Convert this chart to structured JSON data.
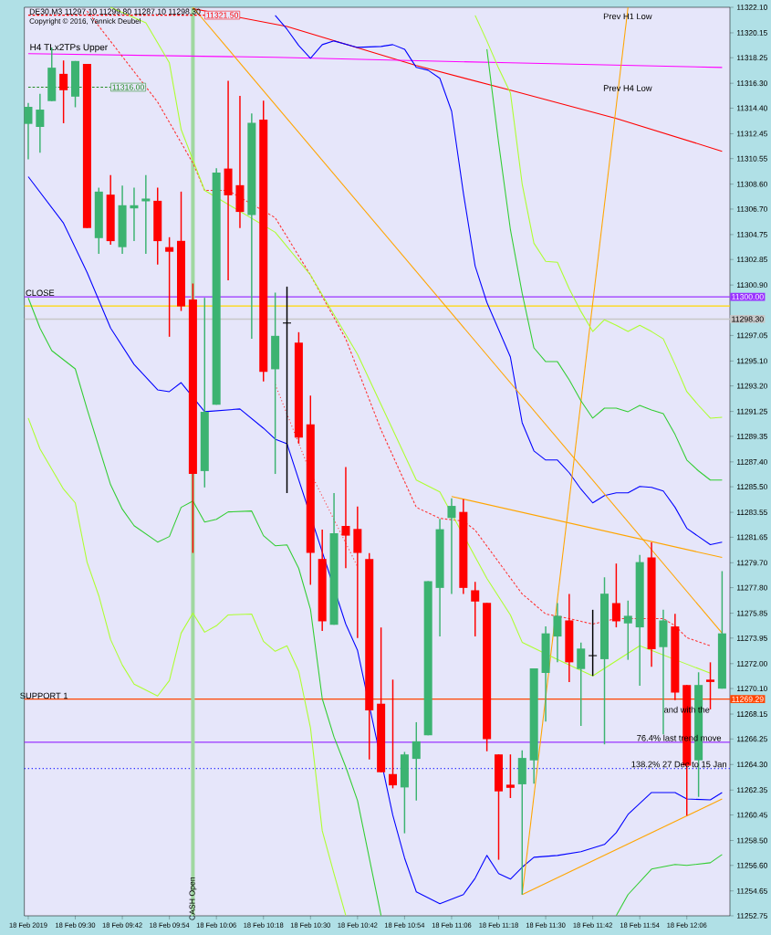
{
  "chart_data": {
    "type": "candlestick",
    "title": "DE30,M3  11297.10 11299.80 11287.10 11298.30",
    "subtitle": "Copyright © 2016, Yannick Deubel",
    "x": [
      "2019-02-18T09:18",
      "2019-02-18T09:21",
      "2019-02-18T09:24",
      "2019-02-18T09:27",
      "2019-02-18T09:30",
      "2019-02-18T09:33",
      "2019-02-18T09:36",
      "2019-02-18T09:39",
      "2019-02-18T09:42",
      "2019-02-18T09:45",
      "2019-02-18T09:48",
      "2019-02-18T09:51",
      "2019-02-18T09:54",
      "2019-02-18T09:57",
      "2019-02-18T10:00",
      "2019-02-18T10:03",
      "2019-02-18T10:06",
      "2019-02-18T10:09",
      "2019-02-18T10:12",
      "2019-02-18T10:15",
      "2019-02-18T10:18",
      "2019-02-18T10:21",
      "2019-02-18T10:24",
      "2019-02-18T10:27",
      "2019-02-18T10:30",
      "2019-02-18T10:33",
      "2019-02-18T10:36",
      "2019-02-18T10:39",
      "2019-02-18T10:42",
      "2019-02-18T10:45",
      "2019-02-18T10:48",
      "2019-02-18T10:51",
      "2019-02-18T10:54",
      "2019-02-18T10:57",
      "2019-02-18T11:00",
      "2019-02-18T11:03",
      "2019-02-18T11:06",
      "2019-02-18T11:09",
      "2019-02-18T11:12",
      "2019-02-18T11:15",
      "2019-02-18T11:18",
      "2019-02-18T11:21",
      "2019-02-18T11:24",
      "2019-02-18T11:27",
      "2019-02-18T11:30",
      "2019-02-18T11:33",
      "2019-02-18T11:36",
      "2019-02-18T11:39",
      "2019-02-18T11:42",
      "2019-02-18T11:45",
      "2019-02-18T11:48",
      "2019-02-18T11:51",
      "2019-02-18T11:54",
      "2019-02-18T11:57",
      "2019-02-18T12:00",
      "2019-02-18T12:03",
      "2019-02-18T12:06",
      "2019-02-18T12:09",
      "2019-02-18T12:12",
      "2019-02-18T12:15"
    ],
    "xlim": [
      "2019-02-18T09:17",
      "2019-02-18T12:17"
    ],
    "ylim": [
      11252.75,
      11322.1
    ],
    "xticks": [
      {
        "value": "2019-02-18T09:18",
        "label": "18 Feb 2019"
      },
      {
        "value": "2019-02-18T09:30",
        "label": "18 Feb 09:30"
      },
      {
        "value": "2019-02-18T09:42",
        "label": "18 Feb 09:42"
      },
      {
        "value": "2019-02-18T09:54",
        "label": "18 Feb 09:54"
      },
      {
        "value": "2019-02-18T10:06",
        "label": "18 Feb 10:06"
      },
      {
        "value": "2019-02-18T10:18",
        "label": "18 Feb 10:18"
      },
      {
        "value": "2019-02-18T10:30",
        "label": "18 Feb 10:30"
      },
      {
        "value": "2019-02-18T10:42",
        "label": "18 Feb 10:42"
      },
      {
        "value": "2019-02-18T10:54",
        "label": "18 Feb 10:54"
      },
      {
        "value": "2019-02-18T11:06",
        "label": "18 Feb 11:06"
      },
      {
        "value": "2019-02-18T11:18",
        "label": "18 Feb 11:18"
      },
      {
        "value": "2019-02-18T11:30",
        "label": "18 Feb 11:30"
      },
      {
        "value": "2019-02-18T11:42",
        "label": "18 Feb 11:42"
      },
      {
        "value": "2019-02-18T11:54",
        "label": "18 Feb 11:54"
      },
      {
        "value": "2019-02-18T12:06",
        "label": "18 Feb 12:06"
      }
    ],
    "yticks": [
      {
        "value": 11322.1,
        "label": "11322.10"
      },
      {
        "value": 11320.15,
        "label": "11320.15"
      },
      {
        "value": 11318.25,
        "label": "11318.25"
      },
      {
        "value": 11316.3,
        "label": "11316.30"
      },
      {
        "value": 11314.4,
        "label": "11314.40"
      },
      {
        "value": 11312.45,
        "label": "11312.45"
      },
      {
        "value": 11310.55,
        "label": "11310.55"
      },
      {
        "value": 11308.6,
        "label": "11308.60"
      },
      {
        "value": 11306.7,
        "label": "11306.70"
      },
      {
        "value": 11304.75,
        "label": "11304.75"
      },
      {
        "value": 11302.85,
        "label": "11302.85"
      },
      {
        "value": 11300.9,
        "label": "11300.90"
      },
      {
        "value": 11297.05,
        "label": "11297.05"
      },
      {
        "value": 11295.1,
        "label": "11295.10"
      },
      {
        "value": 11293.2,
        "label": "11293.20"
      },
      {
        "value": 11291.25,
        "label": "11291.25"
      },
      {
        "value": 11289.35,
        "label": "11289.35"
      },
      {
        "value": 11287.4,
        "label": "11287.40"
      },
      {
        "value": 11285.5,
        "label": "11285.50"
      },
      {
        "value": 11283.55,
        "label": "11283.55"
      },
      {
        "value": 11281.65,
        "label": "11281.65"
      },
      {
        "value": 11279.7,
        "label": "11279.70"
      },
      {
        "value": 11277.8,
        "label": "11277.80"
      },
      {
        "value": 11275.85,
        "label": "11275.85"
      },
      {
        "value": 11273.95,
        "label": "11273.95"
      },
      {
        "value": 11272.0,
        "label": "11272.00"
      },
      {
        "value": 11270.1,
        "label": "11270.10"
      },
      {
        "value": 11268.15,
        "label": "11268.15"
      },
      {
        "value": 11266.25,
        "label": "11266.25"
      },
      {
        "value": 11264.3,
        "label": "11264.30"
      },
      {
        "value": 11262.35,
        "label": "11262.35"
      },
      {
        "value": 11260.45,
        "label": "11260.45"
      },
      {
        "value": 11258.5,
        "label": "11258.50"
      },
      {
        "value": 11256.6,
        "label": "11256.60"
      },
      {
        "value": 11254.65,
        "label": "11254.65"
      },
      {
        "value": 11252.75,
        "label": "11252.75"
      }
    ],
    "series": [
      {
        "ohlc": [
          [
            11313.2,
            11314.8,
            11310.5,
            11314.5
          ],
          [
            11312.97,
            11315.49,
            11311.0,
            11314.29
          ],
          [
            11314.94,
            11319.04,
            11314.94,
            11317.49
          ],
          [
            11317.02,
            11318.04,
            11313.25,
            11315.77
          ],
          [
            11315.28,
            11318.0,
            11314.47,
            11318.0
          ],
          [
            11317.77,
            11317.77,
            11305.25,
            11305.25
          ],
          [
            11304.48,
            11308.33,
            11303.28,
            11308.03
          ],
          [
            11307.8,
            11309.3,
            11303.97,
            11304.25
          ],
          [
            11303.79,
            11308.49,
            11303.28,
            11306.99
          ],
          [
            11306.75,
            11308.33,
            11304.25,
            11306.99
          ],
          [
            11307.29,
            11309.3,
            11303.28,
            11307.5
          ],
          [
            11307.33,
            11308.33,
            11302.47,
            11304.25
          ],
          [
            11303.79,
            11304.55,
            11296.95,
            11303.44
          ],
          [
            11304.27,
            11308.03,
            11298.92,
            11299.27
          ],
          [
            11299.8,
            11301.01,
            11280.45,
            11286.49
          ],
          [
            11286.7,
            11299.92,
            11285.45,
            11291.22
          ],
          [
            11291.76,
            11309.81,
            11291.76,
            11309.49
          ],
          [
            11309.79,
            11316.49,
            11301.26,
            11307.75
          ],
          [
            11308.52,
            11315.33,
            11305.25,
            11306.48
          ],
          [
            11306.24,
            11313.99,
            11296.79,
            11313.29
          ],
          [
            11313.52,
            11314.98,
            11293.54,
            11294.28
          ],
          [
            11294.47,
            11300.32,
            11286.48,
            11297.02
          ],
          [
            11298.0,
            11300.78,
            11285.02,
            11298.0
          ],
          [
            11296.51,
            11297.3,
            11288.79,
            11289.26
          ],
          [
            11290.26,
            11292.46,
            11278.02,
            11280.45
          ],
          [
            11279.99,
            11282.23,
            11274.49,
            11275.23
          ],
          [
            11274.96,
            11285.02,
            11274.96,
            11281.96
          ],
          [
            11282.51,
            11287.01,
            11279.29,
            11281.77
          ],
          [
            11282.28,
            11284.0,
            11273.95,
            11280.45
          ],
          [
            11279.98,
            11280.44,
            11264.68,
            11268.43
          ],
          [
            11268.94,
            11274.76,
            11263.71,
            11263.71
          ],
          [
            11263.57,
            11270.78,
            11262.48,
            11262.71
          ],
          [
            11262.55,
            11265.26,
            11259.05,
            11265.07
          ],
          [
            11264.73,
            11267.53,
            11261.55,
            11266.07
          ],
          [
            11266.53,
            11278.29,
            11266.53,
            11278.29
          ],
          [
            11277.78,
            11283.05,
            11274.08,
            11282.26
          ],
          [
            11283.12,
            11284.62,
            11277.32,
            11284.04
          ],
          [
            11283.58,
            11284.55,
            11277.32,
            11277.78
          ],
          [
            11277.6,
            11278.25,
            11274.08,
            11276.74
          ],
          [
            11276.63,
            11276.63,
            11265.31,
            11266.23
          ],
          [
            11265.07,
            11265.07,
            11257.03,
            11262.25
          ],
          [
            11262.76,
            11265.07,
            11261.74,
            11262.52
          ],
          [
            11262.79,
            11265.38,
            11254.37,
            11264.8
          ],
          [
            11264.62,
            11271.64,
            11262.83,
            11271.64
          ],
          [
            11271.29,
            11274.84,
            11267.58,
            11274.31
          ],
          [
            11274.07,
            11276.62,
            11272.1,
            11275.65
          ],
          [
            11275.3,
            11277.32,
            11270.6,
            11272.1
          ],
          [
            11271.59,
            11273.61,
            11267.24,
            11273.15
          ],
          [
            11272.61,
            11276.11,
            11271.06,
            11272.61
          ],
          [
            11272.34,
            11278.59,
            11265.84,
            11277.34
          ],
          [
            11276.62,
            11279.64,
            11274.77,
            11275.23
          ],
          [
            11275.07,
            11276.81,
            11272.29,
            11275.65
          ],
          [
            11274.77,
            11280.29,
            11270.32,
            11279.75
          ],
          [
            11280.1,
            11281.26,
            11271.76,
            11273.1
          ],
          [
            11273.26,
            11276.11,
            11266.61,
            11275.3
          ],
          [
            11274.84,
            11275.81,
            11269.21,
            11269.79
          ],
          [
            11270.37,
            11270.37,
            11260.4,
            11264.22
          ],
          [
            11264.62,
            11271.34,
            11261.83,
            11270.37
          ],
          [
            11270.78,
            11272.1,
            11268.51,
            11270.6
          ],
          [
            11270.09,
            11279.06,
            11270.09,
            11274.31
          ]
        ],
        "colors": [
          "#3cb371",
          "#3cb371",
          "#3cb371",
          "#ff0000",
          "#3cb371",
          "#ff0000",
          "#3cb371",
          "#ff0000",
          "#3cb371",
          "#3cb371",
          "#3cb371",
          "#ff0000",
          "#ff0000",
          "#ff0000",
          "#ff0000",
          "#3cb371",
          "#3cb371",
          "#ff0000",
          "#ff0000",
          "#3cb371",
          "#ff0000",
          "#3cb371",
          "#000000",
          "#ff0000",
          "#ff0000",
          "#ff0000",
          "#3cb371",
          "#ff0000",
          "#ff0000",
          "#ff0000",
          "#ff0000",
          "#ff0000",
          "#3cb371",
          "#3cb371",
          "#3cb371",
          "#3cb371",
          "#3cb371",
          "#ff0000",
          "#ff0000",
          "#ff0000",
          "#ff0000",
          "#ff0000",
          "#3cb371",
          "#3cb371",
          "#3cb371",
          "#3cb371",
          "#ff0000",
          "#3cb371",
          "#000000",
          "#3cb371",
          "#ff0000",
          "#3cb371",
          "#3cb371",
          "#ff0000",
          "#3cb371",
          "#ff0000",
          "#ff0000",
          "#3cb371",
          "#ff0000",
          "#3cb371"
        ]
      },
      {
        "type": "line",
        "color": "#ff0000",
        "x": [
          "2019-02-18T10:00",
          "2019-02-18T10:24",
          "2019-02-18T10:57",
          "2019-02-18T11:21",
          "2019-02-18T11:48",
          "2019-02-18T12:15"
        ],
        "values": [
          11322.0,
          11320.64,
          11317.65,
          11315.77,
          11313.62,
          11311.11
        ]
      },
      {
        "type": "line",
        "name": "H4 TLx2TPs Upper",
        "color": "#ff00ff",
        "x": [
          "2019-02-18T09:18",
          "2019-02-18T10:21",
          "2019-02-18T11:21",
          "2019-02-18T12:15"
        ],
        "values": [
          11318.56,
          11318.28,
          11317.86,
          11317.51
        ]
      },
      {
        "type": "line",
        "color": "#0000ff",
        "x": [
          "2019-02-18T09:18",
          "2019-02-18T09:27",
          "2019-02-18T09:33",
          "2019-02-18T09:39",
          "2019-02-18T09:45",
          "2019-02-18T09:51",
          "2019-02-18T09:54",
          "2019-02-18T09:57",
          "2019-02-18T10:00",
          "2019-02-18T10:03",
          "2019-02-18T10:12",
          "2019-02-18T10:18",
          "2019-02-18T10:21",
          "2019-02-18T10:24",
          "2019-02-18T10:30",
          "2019-02-18T10:33",
          "2019-02-18T10:39",
          "2019-02-18T10:42",
          "2019-02-18T10:45",
          "2019-02-18T10:48",
          "2019-02-18T10:51",
          "2019-02-18T10:54",
          "2019-02-18T10:57",
          "2019-02-18T11:03",
          "2019-02-18T11:09",
          "2019-02-18T11:12",
          "2019-02-18T11:15",
          "2019-02-18T11:18",
          "2019-02-18T11:21",
          "2019-02-18T11:24",
          "2019-02-18T11:27",
          "2019-02-18T11:33",
          "2019-02-18T11:39",
          "2019-02-18T11:45",
          "2019-02-18T11:48",
          "2019-02-18T11:51",
          "2019-02-18T11:57",
          "2019-02-18T12:03",
          "2019-02-18T12:06",
          "2019-02-18T12:12",
          "2019-02-18T12:15"
        ],
        "values": [
          11309.17,
          11305.62,
          11301.87,
          11297.62,
          11294.84,
          11292.9,
          11292.76,
          11293.45,
          null,
          11291.23,
          11291.44,
          11289.97,
          11289.14,
          11288.79,
          null,
          null,
          11275.02,
          11273.01,
          null,
          null,
          11260.42,
          11257.16,
          11254.58,
          11253.67,
          11254.37,
          11255.62,
          11257.36,
          11255.97,
          11255.55,
          11256.46,
          11257.22,
          11257.36,
          11257.64,
          11258.2,
          11259.1,
          11260.49,
          11262.16,
          11262.16,
          11261.67,
          11261.6,
          11262.16
        ]
      },
      {
        "type": "line",
        "color": "#0000ff",
        "x": [
          "2019-02-18T10:21",
          "2019-02-18T10:24",
          "2019-02-18T10:27",
          "2019-02-18T10:30",
          "2019-02-18T10:33",
          "2019-02-18T10:36",
          "2019-02-18T10:42",
          "2019-02-18T10:48",
          "2019-02-18T10:51",
          "2019-02-18T10:54",
          "2019-02-18T10:57",
          "2019-02-18T11:00",
          "2019-02-18T11:03",
          "2019-02-18T11:06",
          "2019-02-18T11:09",
          "2019-02-18T11:12",
          "2019-02-18T11:15",
          "2019-02-18T11:18",
          "2019-02-18T11:21",
          "2019-02-18T11:24",
          "2019-02-18T11:27",
          "2019-02-18T11:30",
          "2019-02-18T11:33",
          "2019-02-18T11:36",
          "2019-02-18T11:39",
          "2019-02-18T11:42",
          "2019-02-18T11:45",
          "2019-02-18T11:48",
          "2019-02-18T11:51",
          "2019-02-18T11:54",
          "2019-02-18T11:57",
          "2019-02-18T12:00",
          "2019-02-18T12:03",
          "2019-02-18T12:06",
          "2019-02-18T12:09",
          "2019-02-18T12:12",
          "2019-02-18T12:15"
        ],
        "values": [
          11321.48,
          11320.43,
          11319.18,
          11318.21,
          11319.25,
          11319.53,
          11319.04,
          11319.11,
          11319.25,
          11318.9,
          11317.51,
          11317.3,
          11316.68,
          11314.17,
          11307.92,
          11302.35,
          11299.57,
          11297.49,
          11295.4,
          11290.39,
          11288.24,
          11287.54,
          11287.54,
          11286.57,
          11285.32,
          11284.27,
          11284.83,
          11285.04,
          11285.04,
          11285.53,
          11285.46,
          11285.18,
          11283.93,
          11282.33,
          11281.7,
          11281.08,
          11281.28
        ]
      },
      {
        "type": "line",
        "color": "#ffa500",
        "x": [
          "2019-02-18T10:00",
          "2019-02-18T12:15"
        ],
        "values": [
          11322.1,
          11274.33
        ]
      },
      {
        "type": "line",
        "color": "#ffa500",
        "x": [
          "2019-02-18T11:06",
          "2019-02-18T12:15"
        ],
        "values": [
          11284.76,
          11280.1
        ]
      },
      {
        "type": "line",
        "color": "#ffa500",
        "x": [
          "2019-02-18T11:24",
          "2019-02-18T12:15"
        ],
        "values": [
          11254.37,
          11261.67
        ]
      },
      {
        "type": "line",
        "color": "#ffa500",
        "x": [
          "2019-02-18T11:24",
          "2019-02-18T11:51"
        ],
        "values": [
          11254.37,
          11322.1
        ]
      },
      {
        "type": "line",
        "color": "#ff3333",
        "line_style": "dashed",
        "x": [
          "2019-02-18T09:33",
          "2019-02-18T09:45",
          "2019-02-18T09:51",
          "2019-02-18T10:00",
          "2019-02-18T10:03",
          "2019-02-18T10:09",
          "2019-02-18T10:15",
          "2019-02-18T10:21",
          "2019-02-18T10:30",
          "2019-02-18T10:39",
          "2019-02-18T10:48",
          "2019-02-18T10:57",
          "2019-02-18T11:03",
          "2019-02-18T11:09",
          "2019-02-18T11:12",
          "2019-02-18T11:24",
          "2019-02-18T11:30",
          "2019-02-18T11:36",
          "2019-02-18T11:42",
          "2019-02-18T11:48",
          "2019-02-18T11:54",
          "2019-02-18T12:00",
          "2019-02-18T12:03",
          "2019-02-18T12:06",
          "2019-02-18T12:12"
        ],
        "values": [
          11321.82,
          null,
          11314.87,
          11310.21,
          11308.12,
          11308.12,
          null,
          11306.04,
          11301.66,
          11296.79,
          11289.84,
          11283.93,
          11283.09,
          11282.88,
          11282.19,
          11277.32,
          11275.79,
          11275.44,
          11275.02,
          11275.44,
          null,
          11275.44,
          11274.89,
          11273.98,
          11273.36
        ]
      },
      {
        "type": "line",
        "color": "#ff3333",
        "line_style": "dotted",
        "x": [
          "2019-02-18T10:21",
          "2019-02-18T10:30",
          "2019-02-18T10:42"
        ],
        "values": [
          11293.31,
          11286.57,
          11279.41
        ]
      },
      {
        "type": "line",
        "color": "#adff2f",
        "x": [
          "2019-02-18T09:39",
          "2019-02-18T09:48",
          "2019-02-18T09:54",
          "2019-02-18T09:57",
          "2019-02-18T10:03",
          "2019-02-18T10:12",
          "2019-02-18T10:15",
          "2019-02-18T10:21",
          "2019-02-18T10:30",
          "2019-02-18T10:42",
          "2019-02-18T10:57",
          "2019-02-18T11:03",
          "2019-02-18T11:09",
          "2019-02-18T11:15",
          "2019-02-18T11:21",
          "2019-02-18T11:24",
          "2019-02-18T11:30",
          "2019-02-18T11:33",
          "2019-02-18T11:42",
          "2019-02-18T11:54",
          "2019-02-18T12:00",
          "2019-02-18T12:06",
          "2019-02-18T12:12"
        ],
        "values": [
          11322.1,
          11320.92,
          11317.86,
          11312.78,
          11308.12,
          null,
          null,
          11304.93,
          11301.66,
          11295.61,
          11286.01,
          11285.11,
          null,
          11278.5,
          11275.72,
          11273.63,
          null,
          11272.31,
          11271.06,
          11273.36,
          null,
          11271.96,
          11271.27
        ]
      },
      {
        "type": "line",
        "color": "#adff2f",
        "x": [
          "2019-02-18T11:12",
          "2019-02-18T11:15",
          "2019-02-18T11:18",
          "2019-02-18T11:21",
          "2019-02-18T11:24",
          "2019-02-18T11:27",
          "2019-02-18T11:30",
          "2019-02-18T11:33",
          "2019-02-18T11:36",
          "2019-02-18T11:39",
          "2019-02-18T11:42",
          "2019-02-18T11:45",
          "2019-02-18T11:48",
          "2019-02-18T11:51",
          "2019-02-18T11:54",
          "2019-02-18T11:57",
          "2019-02-18T12:00",
          "2019-02-18T12:03",
          "2019-02-18T12:06",
          "2019-02-18T12:09",
          "2019-02-18T12:12",
          "2019-02-18T12:15"
        ],
        "values": [
          11321.48,
          11319.53,
          11317.44,
          11315.57,
          11308.61,
          11304.09,
          11302.7,
          11302.63,
          11300.61,
          11298.88,
          11297.35,
          11298.25,
          11297.83,
          11297.35,
          11297.83,
          11297.35,
          11296.79,
          11294.84,
          11292.76,
          11291.71,
          11290.74,
          11290.81
        ]
      },
      {
        "type": "line",
        "color": "#32cd32",
        "x": [
          "2019-02-18T11:15",
          "2019-02-18T11:18",
          "2019-02-18T11:21",
          "2019-02-18T11:24",
          "2019-02-18T11:27",
          "2019-02-18T11:30",
          "2019-02-18T11:33",
          "2019-02-18T11:36",
          "2019-02-18T11:39",
          "2019-02-18T11:42",
          "2019-02-18T11:45",
          "2019-02-18T11:48",
          "2019-02-18T11:51",
          "2019-02-18T11:54",
          "2019-02-18T11:57",
          "2019-02-18T12:00",
          "2019-02-18T12:03",
          "2019-02-18T12:06",
          "2019-02-18T12:09",
          "2019-02-18T12:12",
          "2019-02-18T12:15"
        ],
        "values": [
          11318.9,
          11311.74,
          11305.13,
          11300.27,
          11296.1,
          11295.05,
          11295.05,
          11293.66,
          11292.06,
          11290.74,
          11291.5,
          11291.5,
          11291.23,
          11291.71,
          11291.37,
          11291.09,
          11289.49,
          11287.54,
          11286.71,
          11286.01,
          11286.01
        ]
      },
      {
        "type": "line",
        "color": "#adff2f",
        "x": [
          "2019-02-18T09:18",
          "2019-02-18T09:21",
          "2019-02-18T09:27",
          "2019-02-18T09:30",
          "2019-02-18T09:33",
          "2019-02-18T09:36",
          "2019-02-18T09:39",
          "2019-02-18T09:42",
          "2019-02-18T09:45",
          "2019-02-18T09:51",
          "2019-02-18T09:54",
          "2019-02-18T09:57",
          "2019-02-18T10:00",
          "2019-02-18T10:03",
          "2019-02-18T10:06",
          "2019-02-18T10:09",
          "2019-02-18T10:15",
          "2019-02-18T10:18",
          "2019-02-18T10:21",
          "2019-02-18T10:24",
          "2019-02-18T10:27",
          "2019-02-18T10:30",
          "2019-02-18T10:33",
          "2019-02-18T10:36",
          "2019-02-18T10:39"
        ],
        "values": [
          11290.74,
          11288.38,
          11285.32,
          11284.27,
          11279.75,
          11277.18,
          11273.84,
          11271.89,
          11270.43,
          11269.53,
          11270.71,
          11274.33,
          11275.86,
          11274.4,
          11274.89,
          11275.72,
          11275.79,
          11273.7,
          11272.94,
          11273.36,
          11271.41,
          11267.1,
          11259.24,
          11255.97,
          11252.77
        ]
      },
      {
        "type": "line",
        "color": "#32cd32",
        "x": [
          "2019-02-18T09:18",
          "2019-02-18T09:21",
          "2019-02-18T09:24",
          "2019-02-18T09:30",
          "2019-02-18T09:33",
          "2019-02-18T09:39",
          "2019-02-18T09:42",
          "2019-02-18T09:45",
          "2019-02-18T09:51",
          "2019-02-18T09:54",
          "2019-02-18T09:57",
          "2019-02-18T10:00",
          "2019-02-18T10:03",
          "2019-02-18T10:06",
          "2019-02-18T10:09",
          "2019-02-18T10:15",
          "2019-02-18T10:18",
          "2019-02-18T10:21",
          "2019-02-18T10:24",
          "2019-02-18T10:27",
          "2019-02-18T10:30",
          "2019-02-18T10:33",
          "2019-02-18T10:36",
          "2019-02-18T10:39",
          "2019-02-18T10:42",
          "2019-02-18T10:48"
        ],
        "values": [
          11299.92,
          11297.62,
          11295.89,
          11294.5,
          11291.44,
          11285.66,
          11283.79,
          11282.53,
          11281.28,
          11281.7,
          11283.93,
          11284.41,
          11282.81,
          11283.02,
          11283.58,
          11283.65,
          11281.77,
          11281.0,
          11281.07,
          11279.27,
          11276.14,
          11269.32,
          11266.4,
          11264.11,
          11261.54,
          11252.77
        ]
      },
      {
        "type": "line",
        "color": "#32cd32",
        "x": [
          "2019-02-18T11:48",
          "2019-02-18T11:51",
          "2019-02-18T11:57",
          "2019-02-18T12:03",
          "2019-02-18T12:06",
          "2019-02-18T12:12",
          "2019-02-18T12:15"
        ],
        "values": [
          11252.77,
          11254.37,
          11256.32,
          11256.67,
          11256.6,
          11256.8,
          11257.43
        ]
      },
      {
        "type": "line",
        "name": "11316.00",
        "color": "#228b22",
        "line_style": "dashed",
        "x": [
          "2019-02-18T09:18",
          "2019-02-18T09:39"
        ],
        "values": [
          11316.0,
          11316.0
        ]
      },
      {
        "type": "line",
        "name": "11321.50",
        "color": "#ff0000",
        "line_style": "dashed",
        "x": [
          "2019-02-18T09:18",
          "2019-02-18T10:03"
        ],
        "values": [
          11321.5,
          11321.5
        ]
      }
    ],
    "ref_lines": [
      {
        "axis": "y",
        "value": 11300.0,
        "label": "11300.00",
        "color": "#9933ff"
      },
      {
        "axis": "y",
        "value": 11299.3,
        "color": "#ffd700"
      },
      {
        "axis": "y",
        "value": 11298.3,
        "label": "11298.30",
        "color": "#c8c8c8"
      },
      {
        "axis": "y",
        "value": 11269.29,
        "label": "11269.29",
        "color": "#ff4500"
      },
      {
        "axis": "y",
        "value": 11266.0,
        "color": "#9933ff"
      },
      {
        "axis": "y",
        "value": 11264.0,
        "color": "#3333ff",
        "line_style": "dotted"
      },
      {
        "axis": "x",
        "value": "2019-02-18T10:00",
        "label": "CASH Open",
        "color": "#a0d8a0"
      }
    ],
    "annotations": [
      {
        "text": "CLOSE",
        "x": "2019-02-18T09:21",
        "y": 11300.3
      },
      {
        "text": "SUPPORT 1",
        "x": "2019-02-18T09:22",
        "y": 11269.55
      },
      "Prev H1 Low",
      "Prev H4 Low",
      {
        "text": "76.4% last trend move",
        "x": "2019-02-18T12:04",
        "y": 11266.33
      },
      {
        "text": "138.2%  27 Dec to 15 Jan",
        "x": "2019-02-18T12:04",
        "y": 11264.32
      },
      {
        "text": "and with the",
        "x": "2019-02-18T12:06",
        "y": 11268.49
      }
    ]
  }
}
